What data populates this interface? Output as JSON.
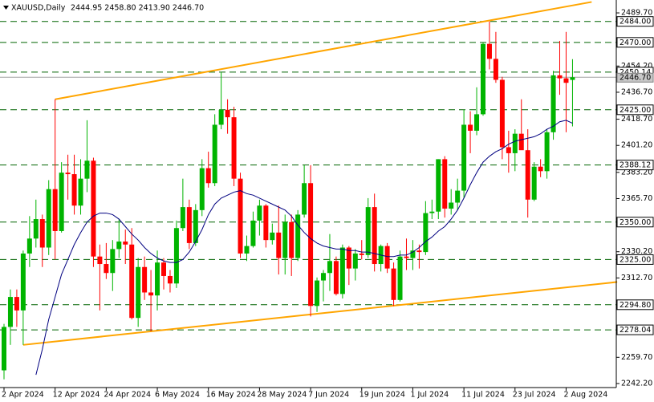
{
  "chart_data": {
    "type": "candlestick",
    "title": "XAUUSD,Daily",
    "subtitle": "2444.95 2458.80 2413.90 2446.70",
    "categories": [
      "2 Apr 2024",
      null,
      null,
      null,
      null,
      null,
      null,
      null,
      "12 Apr 2024",
      null,
      null,
      null,
      null,
      null,
      null,
      null,
      "24 Apr 2024",
      null,
      null,
      null,
      null,
      null,
      null,
      null,
      "6 May 2024",
      null,
      null,
      null,
      null,
      null,
      null,
      null,
      "16 May 2024",
      null,
      null,
      null,
      null,
      null,
      null,
      null,
      "28 May 2024",
      null,
      null,
      null,
      null,
      null,
      null,
      null,
      "7 Jun 2024",
      null,
      null,
      null,
      null,
      null,
      null,
      null,
      "19 Jun 2024",
      null,
      null,
      null,
      null,
      null,
      null,
      null,
      "1 Jul 2024",
      null,
      null,
      null,
      null,
      null,
      null,
      null,
      "11 Jul 2024",
      null,
      null,
      null,
      null,
      null,
      null,
      null,
      "23 Jul 2024",
      null,
      null,
      null,
      null,
      null,
      null,
      null,
      "2 Aug 2024",
      null
    ],
    "open": [
      2251,
      2280,
      2300,
      2291,
      2329,
      2339,
      2352,
      2333,
      2372,
      2344,
      2383,
      2382,
      2361,
      2379,
      2391,
      2327,
      2322,
      2316,
      2332,
      2337,
      2335,
      2286,
      2320,
      2303,
      2301,
      2323,
      2314,
      2309,
      2346,
      2360,
      2336,
      2358,
      2386,
      2376,
      2415,
      2425,
      2420,
      2379,
      2329,
      2334,
      2351,
      2361,
      2338,
      2343,
      2326,
      2350,
      2326,
      2355,
      2376,
      2294,
      2311,
      2316,
      2324,
      2302,
      2333,
      2319,
      2329,
      2328,
      2360,
      2322,
      2334,
      2319,
      2298,
      2327,
      2326,
      2331,
      2330,
      2356,
      2357,
      2392,
      2359,
      2363,
      2371,
      2415,
      2411,
      2422,
      2469,
      2459,
      2445,
      2400,
      2396,
      2409,
      2398,
      2365,
      2387,
      2384,
      2410,
      2448,
      2446,
      2444.95
    ],
    "high": [
      2282,
      2305,
      2305,
      2331,
      2354,
      2365,
      2355,
      2378,
      2432,
      2390,
      2395,
      2395,
      2392,
      2418,
      2393,
      2335,
      2336,
      2338,
      2352,
      2345,
      2346,
      2326,
      2327,
      2318,
      2331,
      2326,
      2318,
      2351,
      2379,
      2365,
      2362,
      2392,
      2397,
      2422,
      2450,
      2432,
      2427,
      2383,
      2341,
      2357,
      2365,
      2362,
      2349,
      2361,
      2355,
      2355,
      2358,
      2388,
      2388,
      2313,
      2318,
      2342,
      2327,
      2335,
      2334,
      2332,
      2338,
      2366,
      2369,
      2335,
      2336,
      2323,
      2331,
      2339,
      2338,
      2335,
      2364,
      2365,
      2392,
      2394,
      2372,
      2379,
      2425,
      2424,
      2440,
      2470,
      2484,
      2477,
      2447,
      2411,
      2412,
      2432,
      2412,
      2390,
      2392,
      2412,
      2451,
      2471,
      2477,
      2458.8
    ],
    "low": [
      2245,
      2268,
      2280,
      2268,
      2320,
      2333,
      2320,
      2328,
      2325,
      2343,
      2365,
      2355,
      2355,
      2370,
      2320,
      2291,
      2312,
      2304,
      2326,
      2322,
      2285,
      2280,
      2298,
      2277,
      2291,
      2305,
      2303,
      2306,
      2344,
      2332,
      2334,
      2354,
      2373,
      2374,
      2412,
      2409,
      2374,
      2326,
      2324,
      2333,
      2341,
      2333,
      2335,
      2315,
      2315,
      2314,
      2324,
      2353,
      2287,
      2290,
      2297,
      2304,
      2301,
      2299,
      2308,
      2311,
      2325,
      2326,
      2317,
      2317,
      2316,
      2294,
      2297,
      2318,
      2318,
      2319,
      2328,
      2352,
      2352,
      2353,
      2355,
      2358,
      2366,
      2396,
      2408,
      2421,
      2452,
      2443,
      2392,
      2383,
      2384,
      2399,
      2353,
      2364,
      2380,
      2379,
      2405,
      2435,
      2410,
      2413.9
    ],
    "close": [
      2280,
      2300,
      2291,
      2329,
      2339,
      2352,
      2333,
      2372,
      2344,
      2383,
      2382,
      2361,
      2379,
      2391,
      2327,
      2322,
      2316,
      2332,
      2337,
      2335,
      2286,
      2320,
      2303,
      2301,
      2323,
      2314,
      2309,
      2346,
      2360,
      2336,
      2358,
      2386,
      2376,
      2415,
      2425,
      2420,
      2379,
      2329,
      2334,
      2351,
      2361,
      2338,
      2343,
      2326,
      2350,
      2326,
      2355,
      2376,
      2294,
      2311,
      2316,
      2324,
      2302,
      2333,
      2319,
      2329,
      2328,
      2360,
      2322,
      2334,
      2319,
      2298,
      2327,
      2326,
      2331,
      2330,
      2356,
      2357,
      2392,
      2359,
      2363,
      2371,
      2415,
      2411,
      2422,
      2469,
      2459,
      2445,
      2400,
      2396,
      2409,
      2398,
      2365,
      2387,
      2384,
      2410,
      2448,
      2446,
      2443,
      2446.7
    ],
    "up_color": "#00b400",
    "down_color": "#ff0000",
    "ma": {
      "color": "#000080",
      "values": [
        null,
        null,
        null,
        null,
        null,
        2248,
        2265,
        2285,
        2300,
        2315,
        2325,
        2335,
        2343,
        2350,
        2354,
        2356,
        2356,
        2355,
        2352,
        2347,
        2342,
        2338,
        2333,
        2329,
        2326,
        2324,
        2323,
        2323,
        2325,
        2330,
        2337,
        2345,
        2355,
        2362,
        2366,
        2368,
        2370,
        2371,
        2369,
        2368,
        2366,
        2364,
        2362,
        2360,
        2358,
        2354,
        2348,
        2343,
        2339,
        2336,
        2334,
        2333,
        2332,
        2332,
        2331,
        2331,
        2330,
        2330,
        2329,
        2328,
        2327,
        2327,
        2328,
        2328,
        2330,
        2333,
        2337,
        2340,
        2344,
        2347,
        2352,
        2358,
        2366,
        2375,
        2383,
        2390,
        2394,
        2397,
        2399,
        2402,
        2404,
        2405,
        2406,
        2407,
        2409,
        2412,
        2414,
        2417,
        2418,
        2416
      ]
    },
    "trendlines": {
      "color": "#ffa500",
      "lines": [
        {
          "x": [
            8,
            92
          ],
          "y": [
            2432,
            2497
          ]
        },
        {
          "x": [
            3,
            96
          ],
          "y": [
            2268,
            2310
          ]
        }
      ]
    },
    "levels": [
      {
        "value": 2484,
        "label": "2484.00"
      },
      {
        "value": 2470,
        "label": "2470.00"
      },
      2450.14,
      {
        "value": 2425,
        "label": "2425.00"
      },
      2388.12,
      {
        "value": 2350,
        "label": "2350.00"
      },
      {
        "value": 2325,
        "label": "2325.00"
      },
      {
        "value": 2294.8,
        "label": "2294.80"
      },
      2278.04
    ],
    "level_color": "#006400",
    "current_price": {
      "value": 2446.7,
      "label": "2446.70"
    },
    "ylim": [
      2239.5,
      2498.3
    ],
    "yticks": [
      {
        "value": 2489.7,
        "label": "2489.70"
      },
      {
        "value": 2454.2,
        "label": "2454.20"
      },
      {
        "value": 2436.7,
        "label": "2436.70"
      },
      {
        "value": 2418.7,
        "label": "2418.70"
      },
      {
        "value": 2401.2,
        "label": "2401.20"
      },
      {
        "value": 2383.2,
        "label": "2383.20"
      },
      {
        "value": 2365.7,
        "label": "2365.70"
      },
      {
        "value": 2330.2,
        "label": "2330.20"
      },
      {
        "value": 2312.7,
        "label": "2312.70"
      },
      {
        "value": 2259.7,
        "label": "2259.70"
      },
      {
        "value": 2242.2,
        "label": "2242.20"
      }
    ]
  }
}
